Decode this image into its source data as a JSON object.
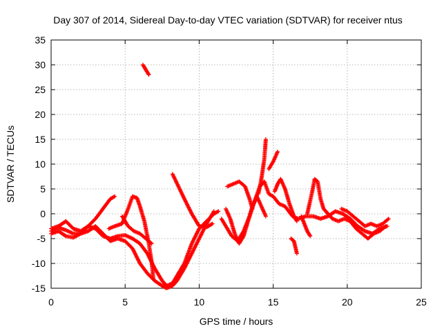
{
  "chart_data": {
    "type": "scatter",
    "title": "Day 307 of 2014, Sidereal Day-to-day VTEC variation (SDTVAR) for receiver ntus",
    "xlabel": "GPS time / hours",
    "ylabel": "SDTVAR / TECUs",
    "xlim": [
      0,
      25
    ],
    "ylim": [
      -15,
      35
    ],
    "xticks": [
      0,
      5,
      10,
      15,
      20,
      25
    ],
    "yticks": [
      -15,
      -10,
      -5,
      0,
      5,
      10,
      15,
      20,
      25,
      30,
      35
    ],
    "grid": true,
    "marker": "+",
    "series": [
      {
        "name": "SDTVAR",
        "color": "#ff0000",
        "tracks": [
          [
            [
              0.0,
              -3.0
            ],
            [
              0.5,
              -2.5
            ],
            [
              1.0,
              -1.5
            ],
            [
              1.5,
              -3.0
            ],
            [
              2.0,
              -3.5
            ],
            [
              2.5,
              -2.5
            ],
            [
              3.0,
              -3.0
            ],
            [
              3.5,
              -4.5
            ],
            [
              4.0,
              -5.0
            ],
            [
              4.5,
              -4.5
            ],
            [
              5.0,
              -4.3
            ],
            [
              5.5,
              -5.0
            ],
            [
              6.0,
              -6.0
            ],
            [
              6.5,
              -8.0
            ],
            [
              7.0,
              -11.0
            ],
            [
              7.5,
              -13.5
            ],
            [
              7.8,
              -14.5
            ],
            [
              8.2,
              -14.0
            ],
            [
              8.5,
              -12.5
            ],
            [
              9.0,
              -10.0
            ],
            [
              9.5,
              -6.0
            ],
            [
              10.0,
              -3.0
            ],
            [
              10.5,
              -1.5
            ],
            [
              11.0,
              0.0
            ],
            [
              11.3,
              0.5
            ]
          ],
          [
            [
              0.0,
              -4.0
            ],
            [
              0.5,
              -3.5
            ],
            [
              1.0,
              -4.5
            ],
            [
              1.5,
              -4.8
            ],
            [
              2.0,
              -4.0
            ],
            [
              2.5,
              -3.5
            ],
            [
              3.0,
              -2.5
            ],
            [
              3.5,
              -4.0
            ],
            [
              4.0,
              -5.5
            ],
            [
              4.5,
              -5.0
            ],
            [
              5.0,
              -5.5
            ],
            [
              5.5,
              -7.0
            ],
            [
              6.0,
              -10.0
            ],
            [
              6.5,
              -12.0
            ],
            [
              7.0,
              -13.5
            ],
            [
              7.5,
              -14.5
            ],
            [
              7.8,
              -15.0
            ],
            [
              8.2,
              -14.5
            ],
            [
              8.5,
              -13.5
            ],
            [
              9.0,
              -11.0
            ],
            [
              9.5,
              -8.0
            ],
            [
              10.0,
              -5.0
            ],
            [
              10.5,
              -2.0
            ],
            [
              11.0,
              0.5
            ]
          ],
          [
            [
              0.0,
              -3.5
            ],
            [
              0.5,
              -2.8
            ],
            [
              1.0,
              -3.3
            ],
            [
              1.5,
              -4.0
            ],
            [
              2.0,
              -4.0
            ],
            [
              2.5,
              -2.5
            ],
            [
              3.0,
              -1.0
            ],
            [
              3.5,
              1.0
            ],
            [
              4.0,
              3.0
            ],
            [
              4.3,
              3.5
            ]
          ],
          [
            [
              3.9,
              -3.0
            ],
            [
              4.3,
              -2.5
            ],
            [
              4.8,
              -2.0
            ],
            [
              5.2,
              1.0
            ],
            [
              5.5,
              3.5
            ],
            [
              5.8,
              3.2
            ],
            [
              6.0,
              1.5
            ],
            [
              6.3,
              -1.5
            ],
            [
              6.6,
              -6.0
            ],
            [
              6.8,
              -10.0
            ],
            [
              6.9,
              -13.0
            ]
          ],
          [
            [
              4.8,
              -0.5
            ],
            [
              5.2,
              -2.5
            ],
            [
              5.6,
              -3.5
            ],
            [
              6.0,
              -4.0
            ],
            [
              6.4,
              -5.0
            ],
            [
              6.8,
              -6.0
            ]
          ],
          [
            [
              6.2,
              30.0
            ],
            [
              6.4,
              29.0
            ],
            [
              6.6,
              28.0
            ]
          ],
          [
            [
              8.2,
              8.0
            ],
            [
              8.6,
              5.5
            ],
            [
              9.0,
              3.0
            ],
            [
              9.5,
              0.0
            ],
            [
              10.0,
              -2.5
            ],
            [
              10.5,
              -2.7
            ],
            [
              10.9,
              -2.0
            ]
          ],
          [
            [
              11.5,
              -1.0
            ],
            [
              11.8,
              -2.5
            ],
            [
              12.2,
              -4.5
            ],
            [
              12.6,
              -5.5
            ],
            [
              13.0,
              -3.5
            ],
            [
              13.4,
              -0.5
            ],
            [
              13.8,
              3.0
            ],
            [
              14.1,
              5.5
            ],
            [
              14.4,
              6.5
            ],
            [
              14.7,
              4.0
            ],
            [
              15.0,
              3.5
            ],
            [
              15.4,
              2.0
            ],
            [
              15.8,
              1.5
            ],
            [
              16.3,
              -0.5
            ],
            [
              16.7,
              -1.0
            ],
            [
              17.2,
              -0.5
            ],
            [
              17.7,
              -0.5
            ],
            [
              18.2,
              -1.0
            ],
            [
              18.7,
              -0.5
            ],
            [
              19.2,
              0.5
            ],
            [
              19.7,
              0.0
            ],
            [
              20.2,
              -1.0
            ],
            [
              20.7,
              -2.5
            ],
            [
              21.2,
              -3.5
            ],
            [
              21.7,
              -4.0
            ],
            [
              22.2,
              -3.0
            ],
            [
              22.7,
              -2.5
            ]
          ],
          [
            [
              11.8,
              1.0
            ],
            [
              12.1,
              -1.0
            ],
            [
              12.4,
              -4.0
            ],
            [
              12.7,
              -6.0
            ],
            [
              13.0,
              -4.5
            ],
            [
              13.3,
              -1.5
            ],
            [
              13.6,
              1.5
            ],
            [
              13.9,
              3.5
            ],
            [
              14.2,
              1.5
            ],
            [
              14.5,
              -0.5
            ]
          ],
          [
            [
              11.9,
              5.5
            ],
            [
              12.3,
              6.0
            ],
            [
              12.7,
              6.5
            ],
            [
              13.1,
              5.5
            ],
            [
              13.4,
              3.0
            ],
            [
              13.6,
              1.0
            ]
          ],
          [
            [
              14.0,
              4.0
            ],
            [
              14.2,
              7.0
            ],
            [
              14.4,
              11.0
            ],
            [
              14.5,
              15.0
            ]
          ],
          [
            [
              14.7,
              9.0
            ],
            [
              15.0,
              10.5
            ],
            [
              15.3,
              12.5
            ]
          ],
          [
            [
              15.1,
              4.5
            ],
            [
              15.3,
              6.0
            ],
            [
              15.5,
              7.0
            ],
            [
              15.8,
              5.0
            ],
            [
              16.1,
              2.0
            ],
            [
              16.4,
              -0.5
            ],
            [
              16.6,
              -1.5
            ]
          ],
          [
            [
              16.2,
              -5.0
            ],
            [
              16.4,
              -5.5
            ],
            [
              16.6,
              -8.0
            ]
          ],
          [
            [
              16.9,
              -0.5
            ],
            [
              17.1,
              -2.0
            ],
            [
              17.3,
              -3.5
            ],
            [
              17.5,
              -4.5
            ]
          ],
          [
            [
              17.3,
              0.0
            ],
            [
              17.6,
              4.0
            ],
            [
              17.8,
              7.0
            ],
            [
              18.0,
              6.5
            ],
            [
              18.2,
              3.0
            ],
            [
              18.4,
              1.0
            ],
            [
              18.7,
              0.0
            ],
            [
              19.0,
              -1.0
            ],
            [
              19.4,
              -1.5
            ],
            [
              19.8,
              -1.0
            ],
            [
              20.2,
              -1.5
            ],
            [
              20.6,
              -3.0
            ],
            [
              21.0,
              -4.0
            ],
            [
              21.4,
              -5.0
            ],
            [
              21.8,
              -4.0
            ],
            [
              22.2,
              -3.5
            ],
            [
              22.6,
              -2.5
            ]
          ],
          [
            [
              19.6,
              1.0
            ],
            [
              20.0,
              0.5
            ],
            [
              20.4,
              -0.5
            ],
            [
              20.8,
              -1.5
            ],
            [
              21.2,
              -2.5
            ],
            [
              21.6,
              -2.0
            ],
            [
              22.0,
              -2.5
            ],
            [
              22.4,
              -2.0
            ],
            [
              22.8,
              -1.0
            ]
          ]
        ]
      }
    ]
  }
}
